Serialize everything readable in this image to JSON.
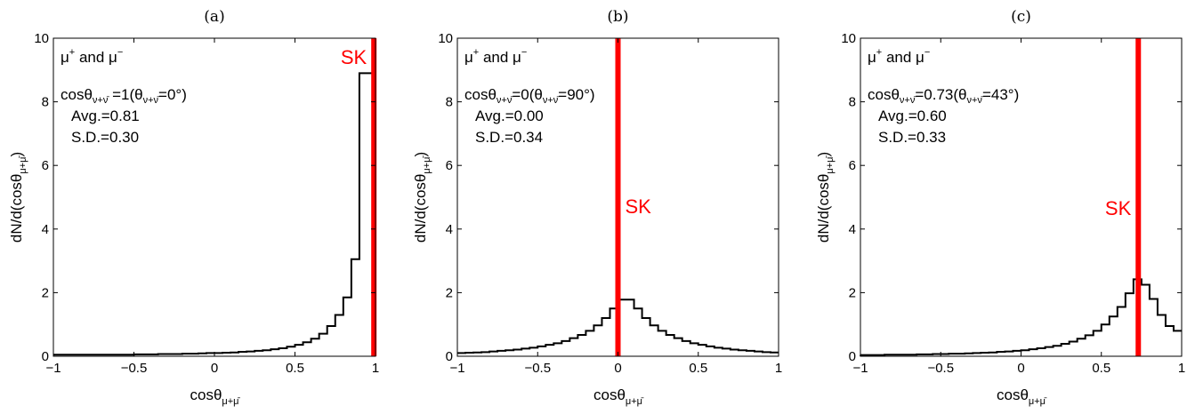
{
  "figure": {
    "panel_letters": [
      "(a)",
      "(b)",
      "(c)"
    ],
    "colors": {
      "histogram": "#000000",
      "sk_line": "#ff0000",
      "axes": "#000000"
    }
  },
  "chart_data": [
    {
      "type": "bar",
      "panel": "(a)",
      "xlabel": "cosθ",
      "xlabel_sub": "μ+μ̄",
      "ylabel": "dN/d(cosθ",
      "ylabel_sub": "μ+μ̄",
      "ylabel_close": ")",
      "xlim": [
        -1,
        1
      ],
      "ylim": [
        0,
        10
      ],
      "xticks": [
        "−1",
        "−0.5",
        "0",
        "0.5",
        "1"
      ],
      "yticks": [
        "0",
        "2",
        "4",
        "6",
        "8",
        "10"
      ],
      "bin_width": 0.05,
      "values": [
        0.05,
        0.05,
        0.05,
        0.05,
        0.05,
        0.05,
        0.05,
        0.05,
        0.05,
        0.05,
        0.06,
        0.06,
        0.06,
        0.07,
        0.07,
        0.07,
        0.08,
        0.08,
        0.09,
        0.1,
        0.1,
        0.11,
        0.12,
        0.14,
        0.15,
        0.17,
        0.19,
        0.22,
        0.25,
        0.3,
        0.36,
        0.44,
        0.55,
        0.71,
        0.95,
        1.3,
        1.85,
        3.05,
        8.9,
        8.9
      ],
      "sk_line_x": 0.99,
      "sk_label": "SK",
      "legend_text": "μ",
      "legend_sup1": "+",
      "legend_and": " and μ",
      "legend_sup2": "−",
      "annotation": {
        "line1_prefix": "cosθ",
        "line1_sub": "ν+ν̄",
        "line1_mid": " =1(θ",
        "line1_sub2": "ν+ν̄",
        "line1_suffix": "=0°)",
        "avg": "Avg.=0.81",
        "sd": "S.D.=0.30"
      }
    },
    {
      "type": "bar",
      "panel": "(b)",
      "xlabel": "cosθ",
      "xlabel_sub": "μ+μ̄",
      "ylabel": "dN/d(cosθ",
      "ylabel_sub": "μ+μ̄",
      "ylabel_close": ")",
      "xlim": [
        -1,
        1
      ],
      "ylim": [
        0,
        10
      ],
      "xticks": [
        "−1",
        "−0.5",
        "0",
        "0.5",
        "1"
      ],
      "yticks": [
        "0",
        "2",
        "4",
        "6",
        "8",
        "10"
      ],
      "bin_width": 0.05,
      "values": [
        0.1,
        0.11,
        0.12,
        0.13,
        0.15,
        0.17,
        0.19,
        0.21,
        0.24,
        0.27,
        0.31,
        0.36,
        0.41,
        0.48,
        0.57,
        0.67,
        0.8,
        0.97,
        1.2,
        1.5,
        1.78,
        1.78,
        1.5,
        1.2,
        0.97,
        0.8,
        0.67,
        0.57,
        0.48,
        0.41,
        0.36,
        0.31,
        0.27,
        0.24,
        0.21,
        0.19,
        0.17,
        0.15,
        0.13,
        0.12
      ],
      "sk_line_x": 0.0,
      "sk_label": "SK",
      "legend_text": "μ",
      "legend_sup1": "+",
      "legend_and": " and μ",
      "legend_sup2": "−",
      "annotation": {
        "line1_prefix": "cosθ",
        "line1_sub": "ν+ν̄",
        "line1_mid": "=0(θ",
        "line1_sub2": "ν+ν̄",
        "line1_suffix": "=90°)",
        "avg": "Avg.=0.00",
        "sd": "S.D.=0.34"
      }
    },
    {
      "type": "bar",
      "panel": "(c)",
      "xlabel": "cosθ",
      "xlabel_sub": "μ+μ̄",
      "ylabel": "dN/d(cosθ",
      "ylabel_sub": "μ+μ̄",
      "ylabel_close": ")",
      "xlim": [
        -1,
        1
      ],
      "ylim": [
        0,
        10
      ],
      "xticks": [
        "−1",
        "−0.5",
        "0",
        "0.5",
        "1"
      ],
      "yticks": [
        "0",
        "2",
        "4",
        "6",
        "8",
        "10"
      ],
      "bin_width": 0.05,
      "values": [
        0.04,
        0.04,
        0.04,
        0.05,
        0.05,
        0.05,
        0.05,
        0.06,
        0.06,
        0.07,
        0.07,
        0.08,
        0.08,
        0.09,
        0.1,
        0.11,
        0.12,
        0.14,
        0.15,
        0.17,
        0.19,
        0.22,
        0.25,
        0.29,
        0.33,
        0.39,
        0.46,
        0.55,
        0.66,
        0.8,
        1.0,
        1.25,
        1.55,
        1.98,
        2.42,
        2.25,
        1.8,
        1.3,
        0.95,
        0.8
      ],
      "sk_line_x": 0.73,
      "sk_label": "SK",
      "legend_text": "μ",
      "legend_sup1": "+",
      "legend_and": " and μ",
      "legend_sup2": "−",
      "annotation": {
        "line1_prefix": "cosθ",
        "line1_sub": "ν+ν̄",
        "line1_mid": "=0.73(θ",
        "line1_sub2": "ν+ν̄",
        "line1_suffix": "=43°)",
        "avg": "Avg.=0.60",
        "sd": "S.D.=0.33"
      }
    }
  ]
}
